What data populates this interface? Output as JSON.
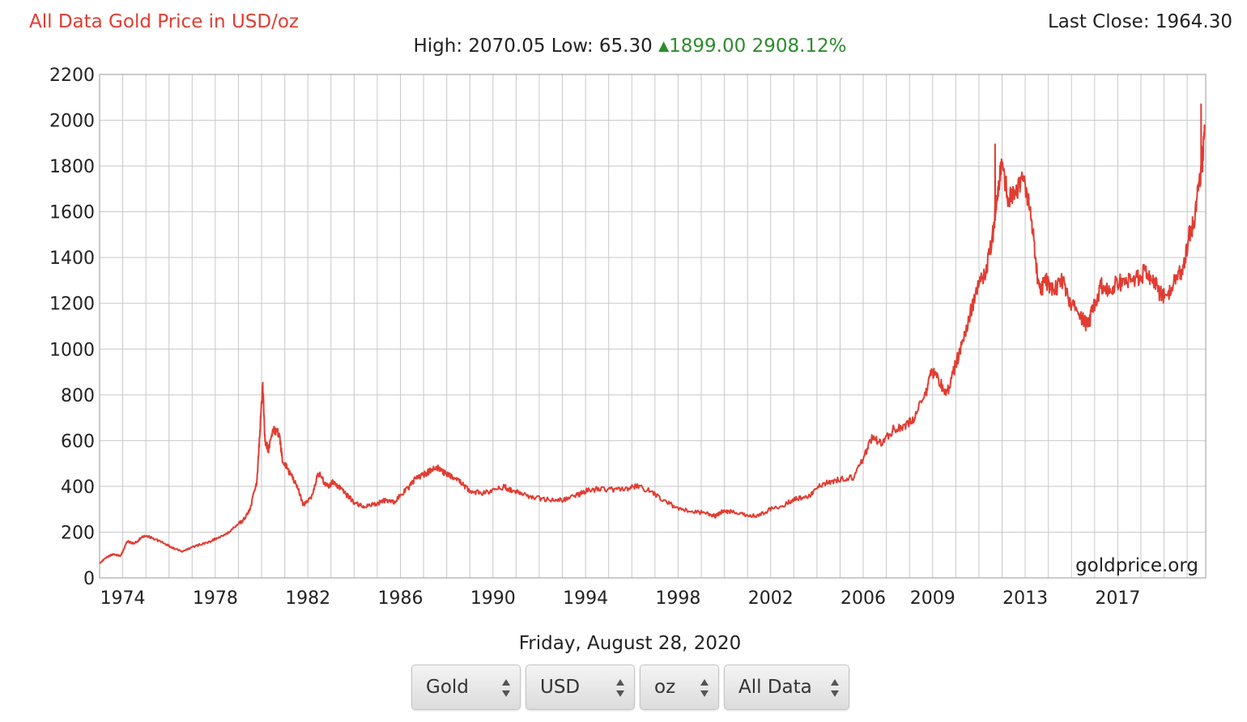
{
  "header": {
    "title": "All Data Gold Price in USD/oz",
    "last_close": "Last Close: 1964.30",
    "high_low": "High: 2070.05 Low: 65.30",
    "change": "1899.00 2908.12%"
  },
  "footer": {
    "date": "Friday, August 28, 2020",
    "selectors": [
      {
        "label": "Gold"
      },
      {
        "label": "USD"
      },
      {
        "label": "oz"
      },
      {
        "label": "All Data"
      }
    ]
  },
  "watermark": "goldprice.org",
  "colors": {
    "line": "#e23c32",
    "grid": "#c8c8c8",
    "up": "#2e8b2e",
    "title": "#e23c32"
  },
  "chart_data": {
    "type": "line",
    "title": "All Data Gold Price in USD/oz",
    "xlabel": "",
    "ylabel": "",
    "xlim": [
      1973.0,
      2020.8
    ],
    "ylim": [
      0,
      2200
    ],
    "grid": true,
    "y_ticks": [
      0,
      200,
      400,
      600,
      800,
      1000,
      1200,
      1400,
      1600,
      1800,
      2000,
      2200
    ],
    "x_tick_labels": [
      "1974",
      "1978",
      "1982",
      "1986",
      "1990",
      "1994",
      "1998",
      "2002",
      "2006",
      "2009",
      "2013",
      "2017"
    ],
    "series": [
      {
        "x": [
          1973.0,
          1973.3,
          1973.6,
          1973.9,
          1974.2,
          1974.5,
          1974.8,
          1975.0,
          1975.4,
          1975.8,
          1976.2,
          1976.6,
          1976.9,
          1977.3,
          1977.7,
          1978.1,
          1978.5,
          1978.9,
          1979.2,
          1979.5,
          1979.8,
          1979.95,
          1980.05,
          1980.15,
          1980.3,
          1980.5,
          1980.75,
          1980.9,
          1981.2,
          1981.5,
          1981.8,
          1982.2,
          1982.45,
          1982.7,
          1982.9,
          1983.1,
          1983.4,
          1983.7,
          1984.0,
          1984.4,
          1984.8,
          1985.1,
          1985.4,
          1985.7,
          1986.0,
          1986.4,
          1986.7,
          1987.0,
          1987.3,
          1987.6,
          1987.9,
          1988.3,
          1988.7,
          1989.0,
          1989.5,
          1990.0,
          1990.5,
          1990.8,
          1991.2,
          1991.8,
          1992.5,
          1993.0,
          1993.6,
          1994.0,
          1994.6,
          1995.2,
          1995.8,
          1996.2,
          1996.8,
          1997.3,
          1997.9,
          1998.5,
          1999.2,
          1999.6,
          1999.9,
          2000.3,
          2000.9,
          2001.4,
          2002.0,
          2002.6,
          2003.1,
          2003.6,
          2004.0,
          2004.5,
          2005.0,
          2005.6,
          2006.0,
          2006.4,
          2006.8,
          2007.3,
          2007.8,
          2008.2,
          2008.7,
          2008.95,
          2009.2,
          2009.6,
          2009.9,
          2010.2,
          2010.6,
          2010.9,
          2011.3,
          2011.6,
          2011.75,
          2011.95,
          2012.3,
          2012.7,
          2012.95,
          2013.2,
          2013.4,
          2013.6,
          2013.9,
          2014.2,
          2014.6,
          2014.9,
          2015.3,
          2015.7,
          2015.95,
          2016.3,
          2016.6,
          2016.9,
          2017.3,
          2017.7,
          2018.1,
          2018.5,
          2018.8,
          2019.1,
          2019.5,
          2019.8,
          2020.1,
          2020.3,
          2020.55,
          2020.65,
          2020.75
        ],
        "y": [
          65,
          90,
          105,
          95,
          160,
          150,
          175,
          185,
          170,
          150,
          130,
          115,
          130,
          145,
          155,
          175,
          190,
          230,
          250,
          300,
          420,
          680,
          845,
          600,
          560,
          650,
          630,
          520,
          460,
          410,
          320,
          360,
          460,
          420,
          400,
          420,
          390,
          360,
          330,
          310,
          320,
          330,
          340,
          330,
          360,
          400,
          440,
          450,
          470,
          480,
          460,
          440,
          410,
          380,
          370,
          380,
          400,
          380,
          370,
          350,
          340,
          340,
          360,
          380,
          390,
          385,
          390,
          400,
          380,
          340,
          310,
          290,
          285,
          270,
          290,
          290,
          275,
          270,
          300,
          320,
          350,
          350,
          400,
          420,
          430,
          440,
          520,
          620,
          580,
          650,
          660,
          700,
          800,
          900,
          880,
          800,
          900,
          1000,
          1150,
          1250,
          1350,
          1500,
          1650,
          1800,
          1650,
          1700,
          1750,
          1600,
          1450,
          1250,
          1300,
          1250,
          1300,
          1220,
          1150,
          1100,
          1180,
          1280,
          1250,
          1280,
          1300,
          1300,
          1330,
          1320,
          1250,
          1220,
          1300,
          1350,
          1500,
          1550,
          1750,
          1800,
          1964.3
        ],
        "peaks": [
          {
            "x": 1980.05,
            "y": 845
          },
          {
            "x": 2011.7,
            "y": 1895
          },
          {
            "x": 2020.6,
            "y": 2070.05
          }
        ]
      }
    ]
  }
}
